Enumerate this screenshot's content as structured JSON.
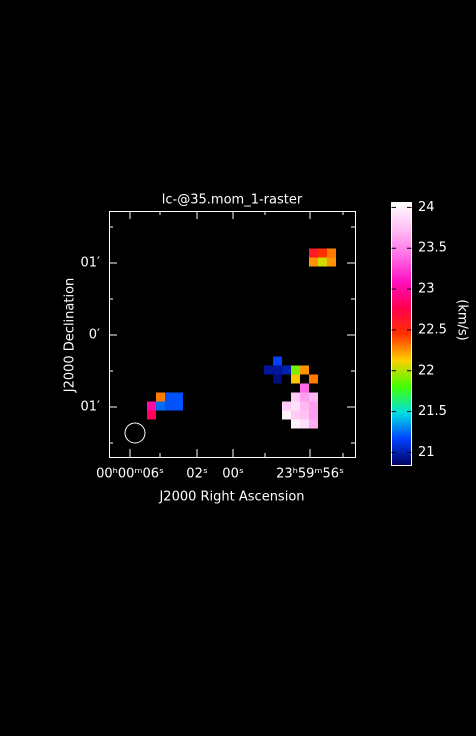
{
  "chart_data": {
    "type": "raster",
    "title": "lc-@35.mom_1-raster",
    "xlabel": "J2000 Right Ascension",
    "ylabel": "J2000 Declination",
    "x_tick_labels": [
      "00ʰ00ᵐ06ˢ",
      "02ˢ",
      "00ˢ",
      "23ʰ59ᵐ56ˢ"
    ],
    "y_tick_labels": [
      "01′",
      "0′",
      "01′"
    ],
    "colorbar_label": "(km/s)",
    "ylim": [
      20.84,
      24.06
    ],
    "yticks": [
      21,
      21.5,
      22,
      22.5,
      23,
      23.5,
      24
    ],
    "colormap": [
      "#000060",
      "#0040ff",
      "#00e0e0",
      "#40ff00",
      "#ffd000",
      "#ff3000",
      "#ff0050",
      "#ff10c0",
      "#ff70e8",
      "#ffc0f4",
      "#ffffff"
    ],
    "cells": {
      "col": [
        22,
        23,
        24,
        22,
        23,
        24,
        18,
        17,
        18,
        19,
        20,
        21,
        18,
        20,
        22,
        21,
        20,
        21,
        22,
        19,
        20,
        21,
        22,
        19,
        20,
        21,
        22,
        20,
        21,
        22,
        5,
        6,
        7,
        4,
        5,
        6,
        7,
        4
      ],
      "row": [
        4,
        4,
        4,
        5,
        5,
        5,
        16,
        17,
        17,
        17,
        17,
        17,
        18,
        18,
        18,
        19,
        20,
        20,
        20,
        21,
        21,
        21,
        21,
        22,
        22,
        22,
        22,
        23,
        23,
        23,
        20,
        20,
        20,
        21,
        21,
        21,
        21,
        22
      ],
      "values": [
        22.6,
        22.45,
        22.3,
        22.25,
        22.05,
        22.25,
        21.15,
        20.95,
        20.95,
        21.0,
        21.9,
        22.25,
        20.9,
        22.15,
        22.3,
        23.4,
        23.8,
        23.6,
        23.7,
        23.8,
        23.9,
        23.7,
        23.6,
        24.0,
        23.8,
        23.75,
        23.6,
        24.0,
        23.9,
        23.65,
        22.3,
        21.2,
        21.2,
        23.0,
        21.25,
        21.2,
        21.2,
        22.8
      ]
    }
  }
}
